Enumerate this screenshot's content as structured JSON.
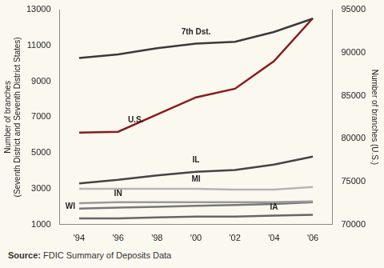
{
  "chart_data": {
    "type": "line",
    "categories": [
      "'94",
      "'96",
      "'98",
      "'00",
      "'02",
      "'04",
      "'06"
    ],
    "series": [
      {
        "name": "7th Dst.",
        "color": "#3a3a3a",
        "values": [
          10300,
          10500,
          10850,
          11100,
          11200,
          11750,
          12500
        ]
      },
      {
        "name": "U.S.",
        "color": "#8b1a1a",
        "axis": "y2",
        "values": [
          80700,
          80800,
          82800,
          84800,
          85800,
          89000,
          94000
        ]
      },
      {
        "name": "IL",
        "color": "#444444",
        "values": [
          3300,
          3500,
          3750,
          3950,
          4050,
          4350,
          4800
        ]
      },
      {
        "name": "MI",
        "color": "#b5b5b5",
        "values": [
          3000,
          3000,
          3000,
          3000,
          2950,
          2950,
          3100
        ]
      },
      {
        "name": "IN",
        "color": "#9a9a9a",
        "values": [
          2200,
          2250,
          2250,
          2250,
          2250,
          2250,
          2300
        ]
      },
      {
        "name": "WI",
        "color": "#777777",
        "values": [
          1900,
          1950,
          2000,
          2050,
          2100,
          2150,
          2250
        ]
      },
      {
        "name": "IA",
        "color": "#666666",
        "values": [
          1350,
          1350,
          1400,
          1450,
          1450,
          1500,
          1550
        ]
      }
    ],
    "y_label": [
      "Number of branches",
      "(Seventh District and Seventh District States)"
    ],
    "y2_label": "Number of branches (U.S.)",
    "ylim": [
      1000,
      13000
    ],
    "yticks": [
      1000,
      3000,
      5000,
      7000,
      9000,
      11000,
      13000
    ],
    "y2lim": [
      70000,
      95000
    ],
    "y2ticks": [
      70000,
      75000,
      80000,
      85000,
      90000,
      95000
    ],
    "grid": false,
    "source": [
      "Source:",
      "FDIC Summary of Deposits Data"
    ]
  }
}
